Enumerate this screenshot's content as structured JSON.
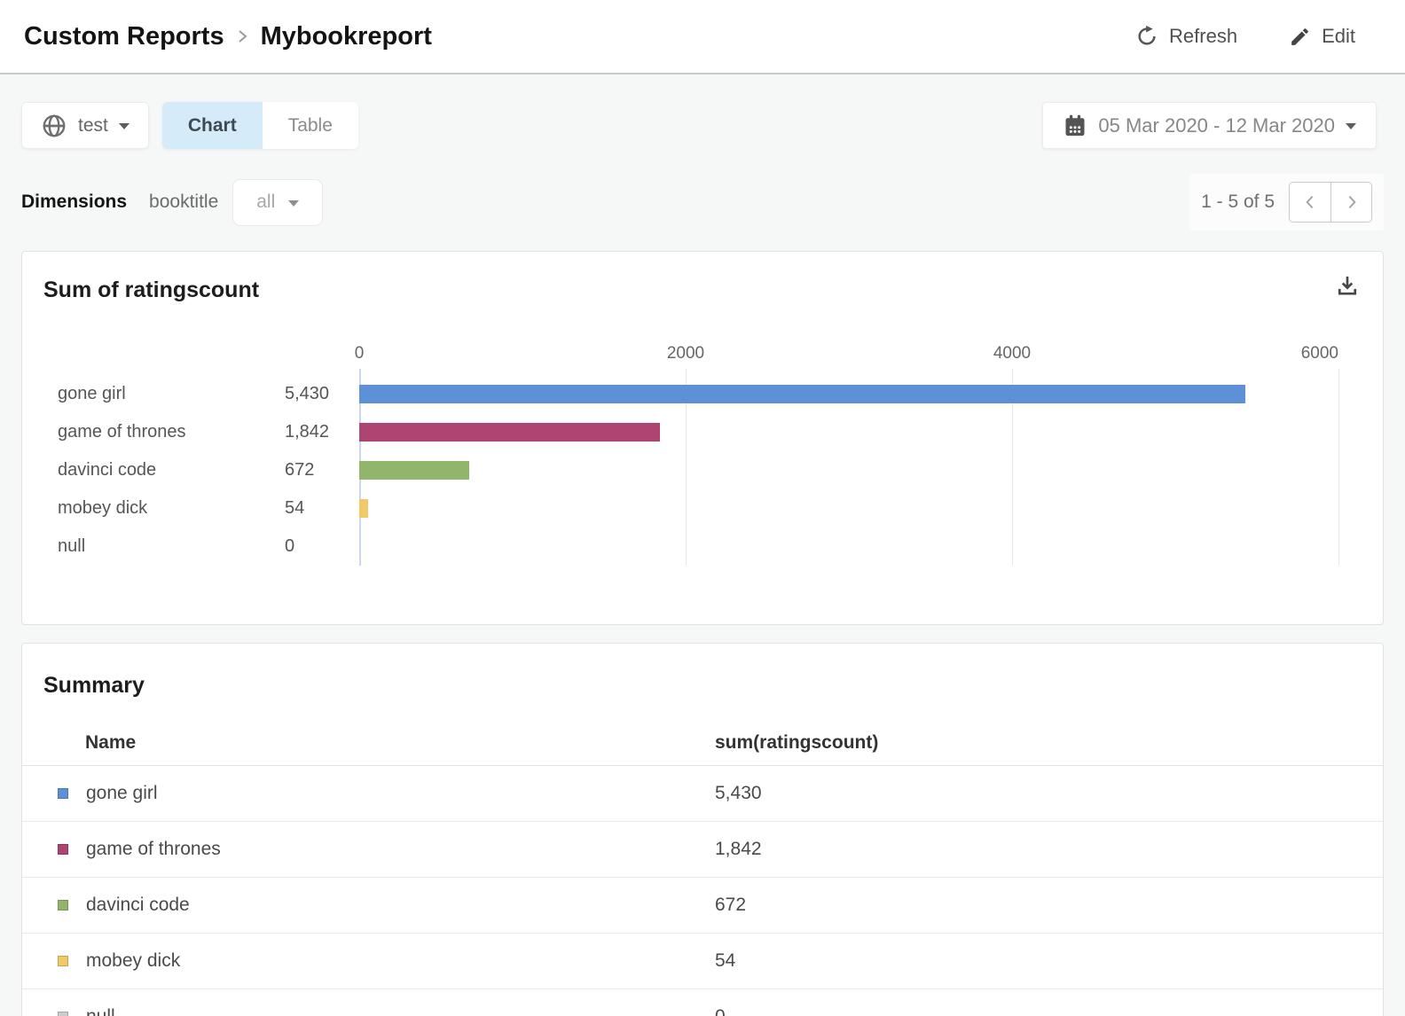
{
  "header": {
    "breadcrumb": {
      "section": "Custom Reports",
      "current": "Mybookreport"
    },
    "actions": {
      "refresh": "Refresh",
      "edit": "Edit"
    }
  },
  "toolbar": {
    "scope_selector": {
      "value": "test"
    },
    "view_toggle": {
      "options": [
        "Chart",
        "Table"
      ],
      "active": "Chart",
      "active_bg": "#d6ebfa"
    },
    "date_range": {
      "value": "05 Mar 2020 - 12 Mar 2020"
    }
  },
  "dimensions_bar": {
    "label": "Dimensions",
    "dimension": "booktitle",
    "filter": {
      "value": "all"
    },
    "pagination": {
      "range_text": "1 - 5 of 5"
    }
  },
  "chart_card": {
    "title": "Sum of ratingscount"
  },
  "chart_data": {
    "type": "bar",
    "orientation": "horizontal",
    "title": "Sum of ratingscount",
    "categories": [
      "gone girl",
      "game of thrones",
      "davinci code",
      "mobey dick",
      "null"
    ],
    "values": [
      5430,
      1842,
      672,
      54,
      0
    ],
    "value_labels": [
      "5,430",
      "1,842",
      "672",
      "54",
      "0"
    ],
    "bar_colors": [
      "#5e90d8",
      "#ad4471",
      "#91b56b",
      "#f2c868",
      "#cccccc"
    ],
    "xlim": [
      0,
      6000
    ],
    "x_ticks": [
      0,
      2000,
      4000,
      6000
    ],
    "x_tick_labels": [
      "0",
      "2000",
      "4000",
      "6000"
    ],
    "grid": true,
    "legend": false
  },
  "summary": {
    "title": "Summary",
    "columns": {
      "name": "Name",
      "value": "sum(ratingscount)"
    },
    "rows": [
      {
        "name": "gone girl",
        "value": "5,430",
        "color": "#5e90d8"
      },
      {
        "name": "game of thrones",
        "value": "1,842",
        "color": "#ad4471"
      },
      {
        "name": "davinci code",
        "value": "672",
        "color": "#91b56b"
      },
      {
        "name": "mobey dick",
        "value": "54",
        "color": "#f2c868"
      },
      {
        "name": "null",
        "value": "0",
        "color": "#cccccc"
      }
    ]
  }
}
